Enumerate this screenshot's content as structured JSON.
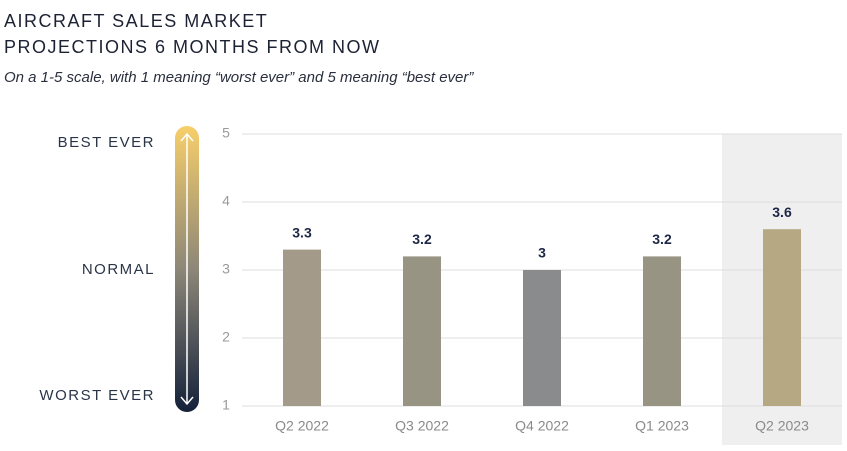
{
  "chart_data": {
    "type": "bar",
    "title": [
      "AIRCRAFT SALES MARKET",
      "PROJECTIONS 6 MONTHS FROM NOW"
    ],
    "subtitle": "On a 1-5 scale, with 1 meaning “worst ever” and 5 meaning “best ever”",
    "scale_labels": [
      "BEST EVER",
      "NORMAL",
      "WORST EVER"
    ],
    "categories": [
      "Q2 2022",
      "Q3 2022",
      "Q4 2022",
      "Q1 2023",
      "Q2 2023"
    ],
    "series": [
      {
        "values": [
          3.3,
          3.2,
          3,
          3.2,
          3.6
        ],
        "colors": [
          "#a39a89",
          "#979484",
          "#8a8b8d",
          "#979484",
          "#b5a883"
        ]
      }
    ],
    "highlight": "Q2 2023",
    "ylim": [
      1,
      5
    ],
    "yticks": [
      1,
      2,
      3,
      4,
      5
    ],
    "grid": true
  }
}
